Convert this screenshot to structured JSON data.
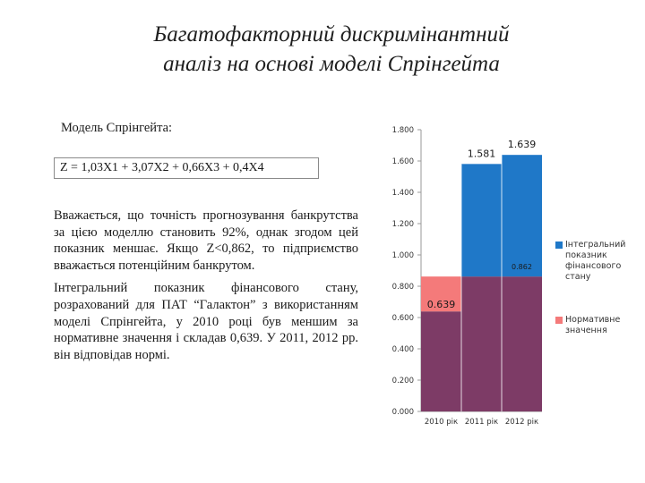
{
  "title": {
    "line1": "Багатофакторний дискримінантний",
    "line2": "аналіз на основі моделі Спрінгейта"
  },
  "model_label": "Модель Спрінгейта:",
  "formula": "Z = 1,03X1 + 3,07X2 + 0,66X3 + 0,4X4",
  "paragraphs": [
    "Вважається, що точність прогнозування банкрутства за цією моделлю становить 92%, однак згодом цей показник меншає. Якщо Z<0,862, то підприємство вважається потенційним банкрутом.",
    "Інтегральний показник фінансового стану, розрахований для ПАТ “Галактон” з використанням моделі Спрінгейта, у 2010 році був меншим за нормативне значення і складав 0,639. У 2011, 2012 рр. він відповідав нормі."
  ],
  "colors": {
    "integral": "#1f78c8",
    "normative": "#f47a7a",
    "overlap": "#7d3b66",
    "grid": "#d0d0d0",
    "axis": "#9a9a9a"
  },
  "chart_data": {
    "type": "bar",
    "categories": [
      "2010 рік",
      "2011 рік",
      "2012 рік"
    ],
    "series": [
      {
        "name": "Інтегральний показник фінансового стану",
        "values": [
          0.639,
          1.581,
          1.639
        ]
      },
      {
        "name": "Нормативне значення",
        "values": [
          0.862,
          0.862,
          0.862
        ]
      }
    ],
    "data_labels": {
      "integral": [
        "0.639",
        "1.581",
        "1.639"
      ],
      "normative": [
        "",
        "",
        "0.862"
      ]
    },
    "y_ticks": [
      "0.000",
      "0.200",
      "0.400",
      "0.600",
      "0.800",
      "1.000",
      "1.200",
      "1.400",
      "1.600",
      "1.800"
    ],
    "ylim": [
      0,
      1.8
    ],
    "grid": false,
    "legend_position": "right"
  }
}
